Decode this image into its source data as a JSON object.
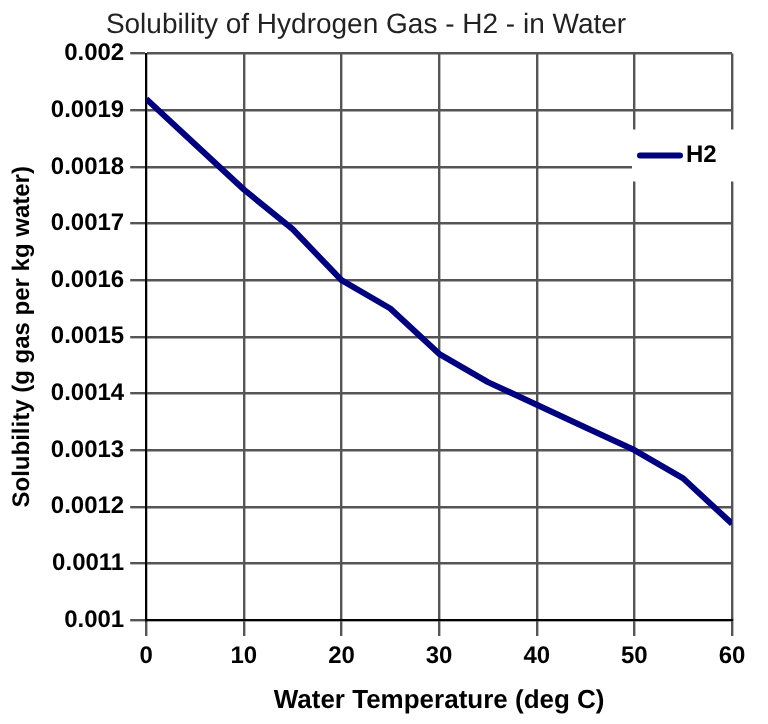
{
  "chart_data": {
    "type": "line",
    "title": "Solubility of Hydrogen Gas - H2 - in Water",
    "xlabel": "Water Temperature (deg C)",
    "ylabel": "Solubility (g gas per kg water)",
    "x": [
      0,
      5,
      10,
      15,
      20,
      25,
      30,
      35,
      40,
      45,
      50,
      55,
      60
    ],
    "series": [
      {
        "name": "H2",
        "color": "#000080",
        "values": [
          0.00192,
          0.00184,
          0.00176,
          0.00169,
          0.0016,
          0.00155,
          0.00147,
          0.00142,
          0.00138,
          0.00134,
          0.0013,
          0.00125,
          0.00117
        ]
      }
    ],
    "xlim": [
      0,
      60
    ],
    "xticks": [
      0,
      10,
      20,
      30,
      40,
      50,
      60
    ],
    "ylim": [
      0.001,
      0.002
    ],
    "yticks": [
      0.001,
      0.0011,
      0.0012,
      0.0013,
      0.0014,
      0.0015,
      0.0016,
      0.0017,
      0.0018,
      0.0019,
      0.002
    ],
    "grid": true,
    "legend": "top right",
    "marker": "none",
    "line_style": "solid"
  }
}
